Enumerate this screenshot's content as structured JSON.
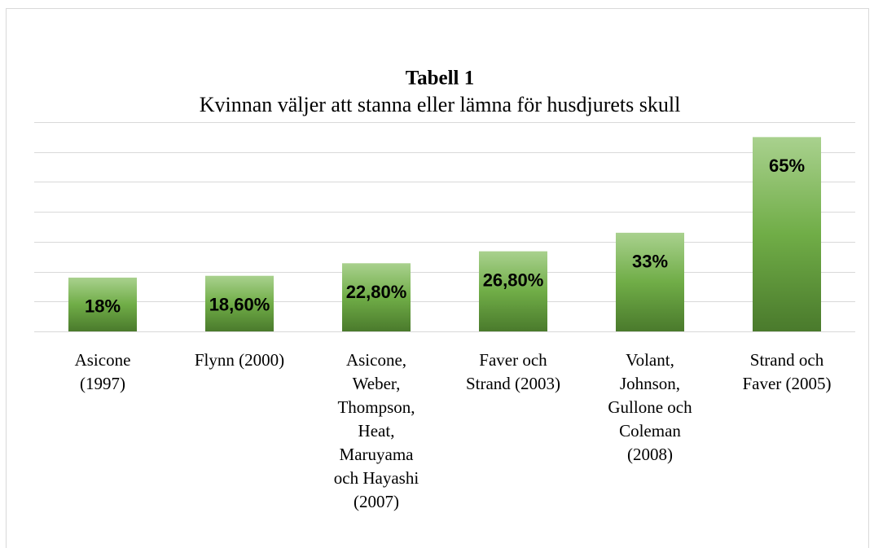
{
  "chart_data": {
    "type": "bar",
    "title": "Tabell 1",
    "subtitle": "Kvinnan väljer att stanna eller lämna för husdjurets skull",
    "categories": [
      "Asicone (1997)",
      "Flynn (2000)",
      "Asicone, Weber, Thompson, Heat, Maruyama och Hayashi (2007)",
      "Faver och Strand (2003)",
      "Volant, Johnson, Gullone och Coleman (2008)",
      "Strand och Faver (2005)"
    ],
    "values": [
      18,
      18.6,
      22.8,
      26.8,
      33,
      65
    ],
    "value_labels": [
      "18%",
      "18,60%",
      "22,80%",
      "26,80%",
      "33%",
      "65%"
    ],
    "color": "#70ad47",
    "ylim": [
      0,
      70
    ],
    "yticks": [
      0,
      10,
      20,
      30,
      40,
      50,
      60,
      70
    ],
    "grid": true
  }
}
